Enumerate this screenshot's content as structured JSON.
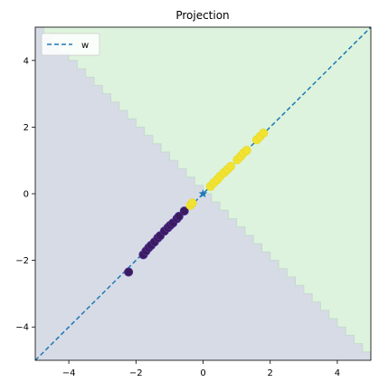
{
  "chart_data": {
    "type": "scatter",
    "title": "Projection",
    "xlabel": "",
    "ylabel": "",
    "xlim": [
      -5,
      5
    ],
    "ylim": [
      -5,
      5
    ],
    "grid": false,
    "xticks": [
      -4,
      -2,
      0,
      2,
      4
    ],
    "yticks": [
      -4,
      -2,
      0,
      2,
      4
    ],
    "legend": {
      "placement": "top-left",
      "entries": [
        {
          "label": "w",
          "style": "dashed",
          "color": "#1f77b4"
        }
      ]
    },
    "decision_regions": {
      "boundary_line": {
        "slope": -1,
        "intercept": 0
      },
      "class_0_color": "#d6dbe6",
      "class_1_color": "#ddf3dd",
      "boundary_color": "#c5d9cf"
    },
    "w_line": {
      "slope": 1,
      "intercept": 0,
      "color": "#1f77b4",
      "style": "dashed"
    },
    "origin_marker": {
      "x": 0,
      "y": 0,
      "marker": "star",
      "color": "#1f77b4"
    },
    "series": [
      {
        "class": 0,
        "color": "#3b1a5e",
        "edge": "#4b2a8c",
        "points": [
          [
            -2.22,
            -2.35
          ],
          [
            -1.78,
            -1.83
          ],
          [
            -1.7,
            -1.72
          ],
          [
            -1.62,
            -1.62
          ],
          [
            -1.55,
            -1.55
          ],
          [
            -1.45,
            -1.45
          ],
          [
            -1.35,
            -1.33
          ],
          [
            -1.28,
            -1.26
          ],
          [
            -1.15,
            -1.12
          ],
          [
            -1.05,
            -1.02
          ],
          [
            -0.98,
            -0.95
          ],
          [
            -0.9,
            -0.88
          ],
          [
            -0.78,
            -0.75
          ],
          [
            -0.72,
            -0.68
          ],
          [
            -0.56,
            -0.52
          ]
        ]
      },
      {
        "class": 1,
        "color": "#f2e333",
        "edge": "#e9dc2a",
        "points": [
          [
            -0.38,
            -0.35
          ],
          [
            -0.32,
            -0.28
          ],
          [
            0.22,
            0.22
          ],
          [
            0.32,
            0.33
          ],
          [
            0.42,
            0.42
          ],
          [
            0.5,
            0.52
          ],
          [
            0.62,
            0.63
          ],
          [
            0.72,
            0.72
          ],
          [
            0.82,
            0.82
          ],
          [
            1.02,
            1.02
          ],
          [
            1.12,
            1.12
          ],
          [
            1.2,
            1.22
          ],
          [
            1.3,
            1.3
          ],
          [
            1.6,
            1.62
          ],
          [
            1.7,
            1.72
          ],
          [
            1.8,
            1.82
          ]
        ]
      }
    ]
  }
}
